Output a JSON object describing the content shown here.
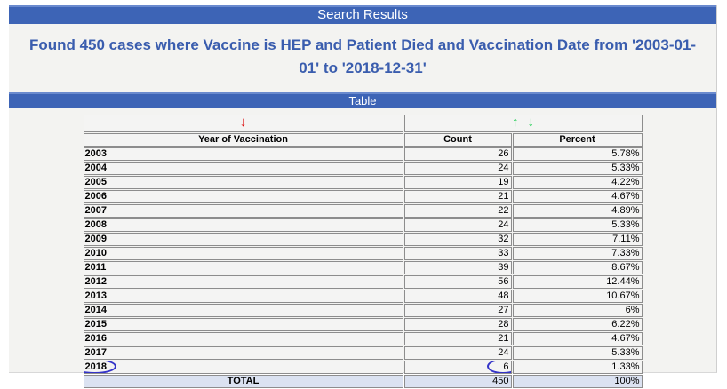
{
  "header": {
    "search_results_label": "Search Results",
    "table_section_label": "Table"
  },
  "title": {
    "text": "Found 450 cases where Vaccine is HEP and Patient Died and Vaccination Date from '2003-01-01' to '2018-12-31'"
  },
  "sort_controls": {
    "year_sort": {
      "icon_name": "red-down-arrow-icon",
      "glyph": "↓",
      "color": "#dd1111"
    },
    "count_sort_up": {
      "icon_name": "green-up-arrow-icon",
      "glyph": "↑",
      "color": "#00c83c"
    },
    "count_sort_down": {
      "icon_name": "green-down-arrow-icon",
      "glyph": "↓",
      "color": "#00c83c"
    }
  },
  "chart_data": {
    "type": "table",
    "title": "Table",
    "columns": [
      "Year of Vaccination",
      "Count",
      "Percent"
    ],
    "rows": [
      {
        "year": "2003",
        "count": "26",
        "percent": "5.78%"
      },
      {
        "year": "2004",
        "count": "24",
        "percent": "5.33%"
      },
      {
        "year": "2005",
        "count": "19",
        "percent": "4.22%"
      },
      {
        "year": "2006",
        "count": "21",
        "percent": "4.67%"
      },
      {
        "year": "2007",
        "count": "22",
        "percent": "4.89%"
      },
      {
        "year": "2008",
        "count": "24",
        "percent": "5.33%"
      },
      {
        "year": "2009",
        "count": "32",
        "percent": "7.11%"
      },
      {
        "year": "2010",
        "count": "33",
        "percent": "7.33%"
      },
      {
        "year": "2011",
        "count": "39",
        "percent": "8.67%"
      },
      {
        "year": "2012",
        "count": "56",
        "percent": "12.44%"
      },
      {
        "year": "2013",
        "count": "48",
        "percent": "10.67%"
      },
      {
        "year": "2014",
        "count": "27",
        "percent": "6%"
      },
      {
        "year": "2015",
        "count": "28",
        "percent": "6.22%"
      },
      {
        "year": "2016",
        "count": "21",
        "percent": "4.67%"
      },
      {
        "year": "2017",
        "count": "24",
        "percent": "5.33%"
      },
      {
        "year": "2018",
        "count": "6",
        "percent": "1.33%"
      }
    ],
    "total_row": {
      "label": "TOTAL",
      "count": "450",
      "percent": "100%"
    }
  },
  "annotations": {
    "circled_year": "2018",
    "circled_count_value": "6",
    "circle_color": "#3434c8"
  },
  "colors": {
    "bar_blue": "#3d64b6",
    "title_blue": "#3a5dae",
    "total_row_bg": "#dbe2f1",
    "page_bg": "#f3f3f1"
  }
}
